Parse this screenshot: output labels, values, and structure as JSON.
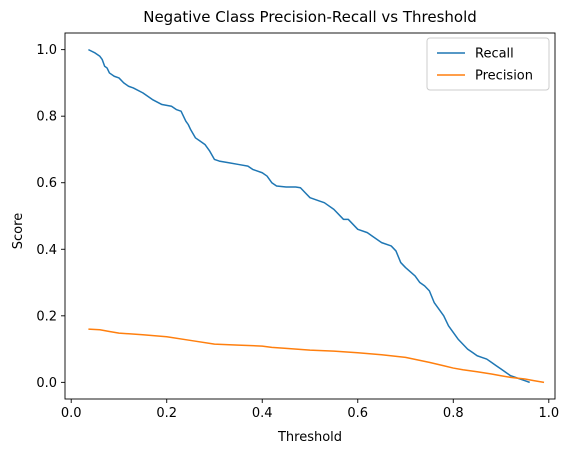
{
  "chart_data": {
    "type": "line",
    "title": "Negative Class Precision-Recall vs Threshold",
    "xlabel": "Threshold",
    "ylabel": "Score",
    "xlim": [
      -0.013,
      1.013
    ],
    "ylim": [
      -0.05,
      1.05
    ],
    "xticks": [
      0.0,
      0.2,
      0.4,
      0.6,
      0.8,
      1.0
    ],
    "xtick_labels": [
      "0.0",
      "0.2",
      "0.4",
      "0.6",
      "0.8",
      "1.0"
    ],
    "yticks": [
      0.0,
      0.2,
      0.4,
      0.6,
      0.8,
      1.0
    ],
    "ytick_labels": [
      "0.0",
      "0.2",
      "0.4",
      "0.6",
      "0.8",
      "1.0"
    ],
    "grid": false,
    "legend_position": "top-right",
    "series": [
      {
        "name": "Recall",
        "color": "#1f77b4",
        "x": [
          0.036,
          0.05,
          0.06,
          0.065,
          0.07,
          0.075,
          0.08,
          0.09,
          0.1,
          0.11,
          0.12,
          0.13,
          0.15,
          0.17,
          0.19,
          0.21,
          0.22,
          0.23,
          0.235,
          0.24,
          0.245,
          0.25,
          0.26,
          0.27,
          0.28,
          0.29,
          0.3,
          0.31,
          0.33,
          0.35,
          0.37,
          0.38,
          0.4,
          0.41,
          0.42,
          0.43,
          0.45,
          0.47,
          0.48,
          0.49,
          0.5,
          0.52,
          0.53,
          0.55,
          0.57,
          0.58,
          0.6,
          0.62,
          0.63,
          0.65,
          0.67,
          0.68,
          0.69,
          0.7,
          0.72,
          0.73,
          0.74,
          0.75,
          0.76,
          0.77,
          0.78,
          0.79,
          0.8,
          0.81,
          0.82,
          0.83,
          0.84,
          0.85,
          0.86,
          0.87,
          0.88,
          0.89,
          0.9,
          0.91,
          0.92,
          0.93,
          0.94,
          0.95,
          0.96
        ],
        "y": [
          1.0,
          0.99,
          0.98,
          0.97,
          0.95,
          0.945,
          0.93,
          0.92,
          0.915,
          0.9,
          0.89,
          0.885,
          0.87,
          0.85,
          0.835,
          0.83,
          0.82,
          0.815,
          0.8,
          0.785,
          0.775,
          0.76,
          0.735,
          0.725,
          0.715,
          0.695,
          0.67,
          0.665,
          0.66,
          0.655,
          0.65,
          0.64,
          0.63,
          0.62,
          0.6,
          0.59,
          0.587,
          0.587,
          0.585,
          0.57,
          0.555,
          0.545,
          0.54,
          0.52,
          0.49,
          0.49,
          0.46,
          0.45,
          0.44,
          0.42,
          0.41,
          0.395,
          0.36,
          0.345,
          0.32,
          0.3,
          0.29,
          0.275,
          0.24,
          0.22,
          0.2,
          0.17,
          0.15,
          0.13,
          0.115,
          0.1,
          0.09,
          0.08,
          0.075,
          0.07,
          0.06,
          0.05,
          0.04,
          0.03,
          0.02,
          0.015,
          0.01,
          0.005,
          0.0
        ]
      },
      {
        "name": "Precision",
        "color": "#ff7f0e",
        "x": [
          0.036,
          0.06,
          0.08,
          0.1,
          0.15,
          0.2,
          0.25,
          0.3,
          0.35,
          0.4,
          0.42,
          0.45,
          0.5,
          0.55,
          0.6,
          0.65,
          0.7,
          0.75,
          0.78,
          0.8,
          0.82,
          0.85,
          0.88,
          0.9,
          0.92,
          0.95,
          0.97,
          0.99
        ],
        "y": [
          0.16,
          0.158,
          0.153,
          0.148,
          0.143,
          0.137,
          0.126,
          0.115,
          0.112,
          0.109,
          0.105,
          0.102,
          0.097,
          0.094,
          0.089,
          0.083,
          0.075,
          0.06,
          0.05,
          0.043,
          0.038,
          0.032,
          0.025,
          0.02,
          0.015,
          0.01,
          0.005,
          0.0
        ]
      }
    ]
  }
}
